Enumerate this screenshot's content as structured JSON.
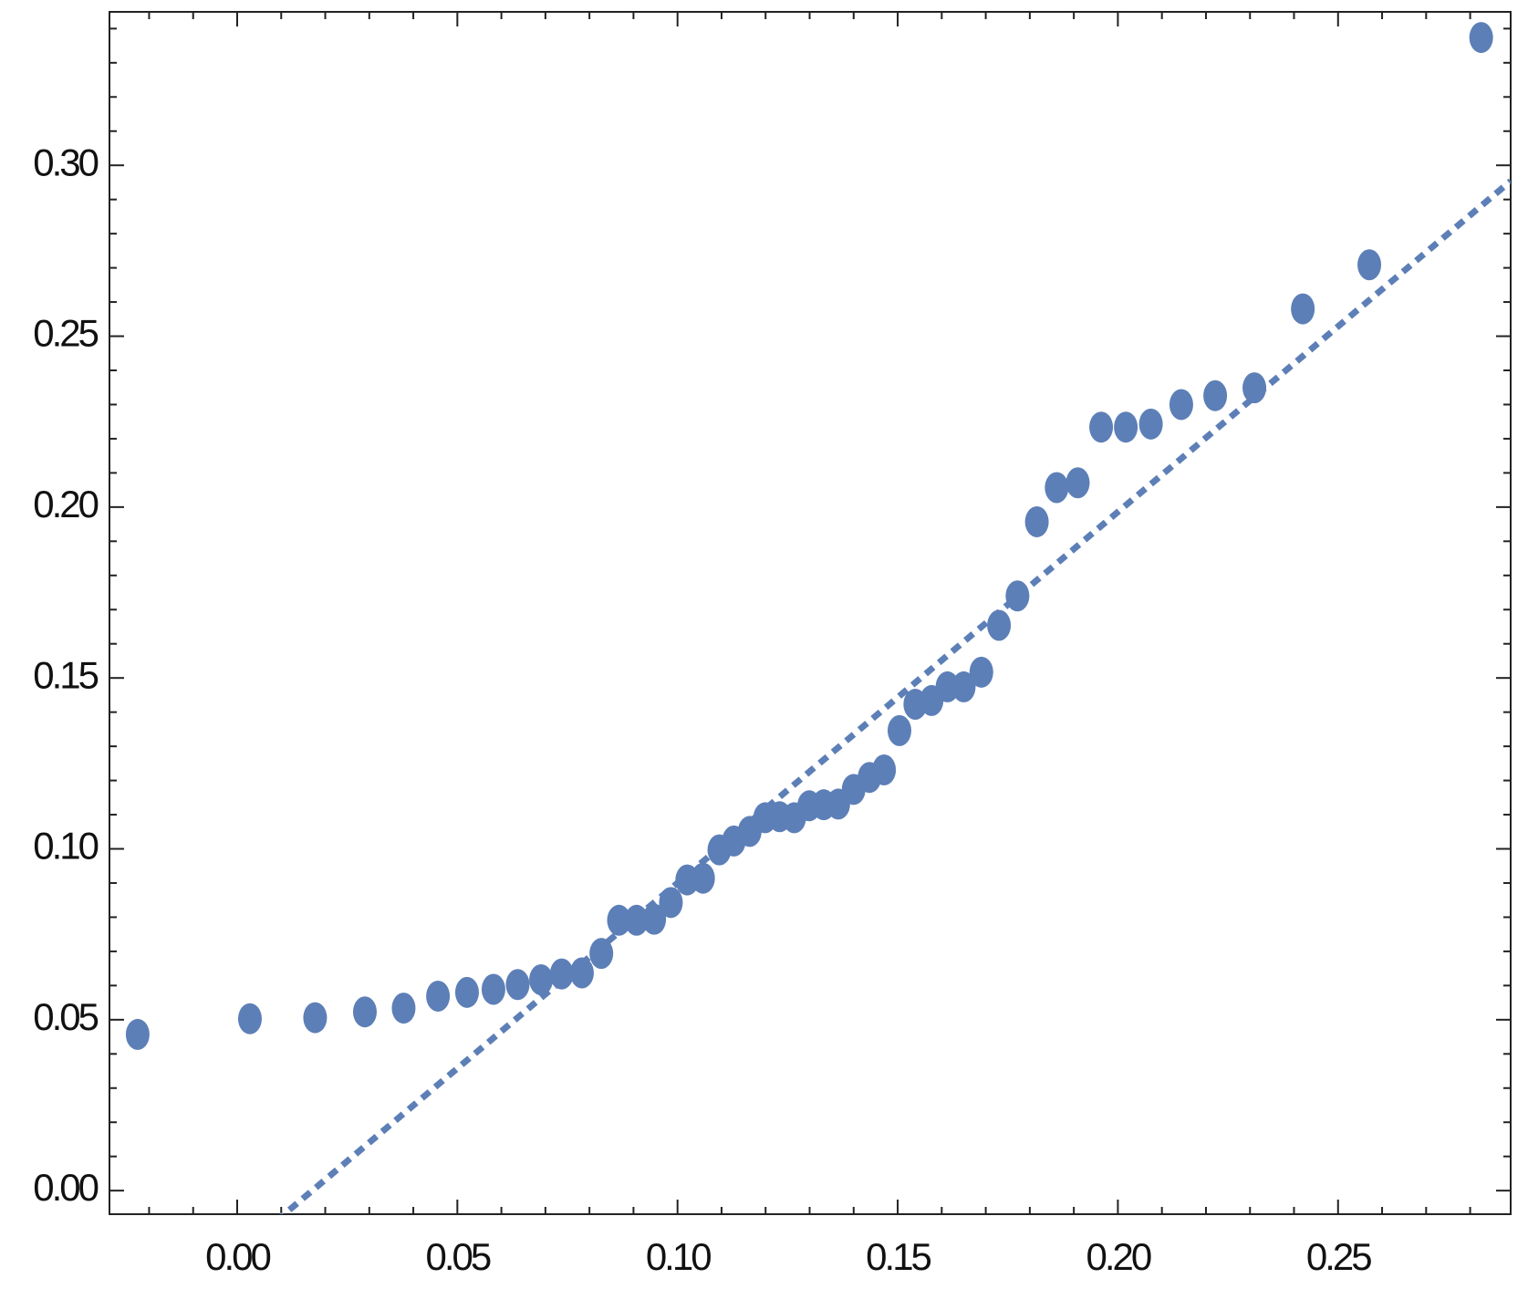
{
  "chart_data": {
    "type": "scatter",
    "xlim": [
      -0.029,
      0.2892
    ],
    "ylim": [
      -0.0069,
      0.3449
    ],
    "xticks": [
      {
        "value": 0,
        "label": "0.00"
      },
      {
        "value": 0.05,
        "label": "0.05"
      },
      {
        "value": 0.1,
        "label": "0.10"
      },
      {
        "value": 0.15,
        "label": "0.15"
      },
      {
        "value": 0.2,
        "label": "0.20"
      },
      {
        "value": 0.25,
        "label": "0.25"
      }
    ],
    "yticks": [
      {
        "value": 0,
        "label": "0.00"
      },
      {
        "value": 0.05,
        "label": "0.05"
      },
      {
        "value": 0.1,
        "label": "0.10"
      },
      {
        "value": 0.15,
        "label": "0.15"
      },
      {
        "value": 0.2,
        "label": "0.20"
      },
      {
        "value": 0.25,
        "label": "0.25"
      },
      {
        "value": 0.3,
        "label": "0.30"
      }
    ],
    "xticks_minor": [
      -0.02,
      -0.01,
      0.01,
      0.02,
      0.03,
      0.04,
      0.06,
      0.07,
      0.08,
      0.09,
      0.11,
      0.12,
      0.13,
      0.14,
      0.16,
      0.17,
      0.18,
      0.19,
      0.21,
      0.22,
      0.23,
      0.24,
      0.26,
      0.27,
      0.28
    ],
    "yticks_minor": [
      0.01,
      0.02,
      0.03,
      0.04,
      0.06,
      0.07,
      0.08,
      0.09,
      0.11,
      0.12,
      0.13,
      0.14,
      0.16,
      0.17,
      0.18,
      0.19,
      0.21,
      0.22,
      0.23,
      0.24,
      0.26,
      0.27,
      0.28,
      0.29,
      0.31,
      0.32,
      0.33,
      0.34
    ],
    "color": "#5d7fb7",
    "x": [
      -0.0226,
      0.0029,
      0.0177,
      0.029,
      0.0378,
      0.0456,
      0.0522,
      0.0582,
      0.0637,
      0.069,
      0.0737,
      0.0783,
      0.0827,
      0.0867,
      0.0907,
      0.0947,
      0.0985,
      0.1022,
      0.1058,
      0.1095,
      0.1128,
      0.1164,
      0.1199,
      0.1232,
      0.1265,
      0.1299,
      0.1332,
      0.1365,
      0.14,
      0.1436,
      0.1469,
      0.1504,
      0.154,
      0.1577,
      0.1613,
      0.165,
      0.169,
      0.173,
      0.1772,
      0.1816,
      0.1861,
      0.1909,
      0.1962,
      0.2018,
      0.2075,
      0.2144,
      0.2221,
      0.231,
      0.242,
      0.2571,
      0.2825
    ],
    "values": [
      0.0457,
      0.0503,
      0.0506,
      0.0523,
      0.0534,
      0.0569,
      0.058,
      0.0589,
      0.0603,
      0.0617,
      0.0634,
      0.0637,
      0.0694,
      0.0791,
      0.0791,
      0.0794,
      0.0843,
      0.0909,
      0.0914,
      0.0997,
      0.1023,
      0.1051,
      0.1091,
      0.1094,
      0.1091,
      0.1126,
      0.1129,
      0.1131,
      0.1174,
      0.1209,
      0.1231,
      0.1346,
      0.1423,
      0.1434,
      0.1474,
      0.1474,
      0.1517,
      0.1654,
      0.174,
      0.1957,
      0.2057,
      0.2071,
      0.2234,
      0.2234,
      0.2243,
      0.23,
      0.2326,
      0.2349,
      0.258,
      0.2709,
      0.3374
    ],
    "fit": {
      "x": [
        0.00885,
        0.2892
      ],
      "values": [
        -0.0089,
        0.2954
      ]
    }
  }
}
